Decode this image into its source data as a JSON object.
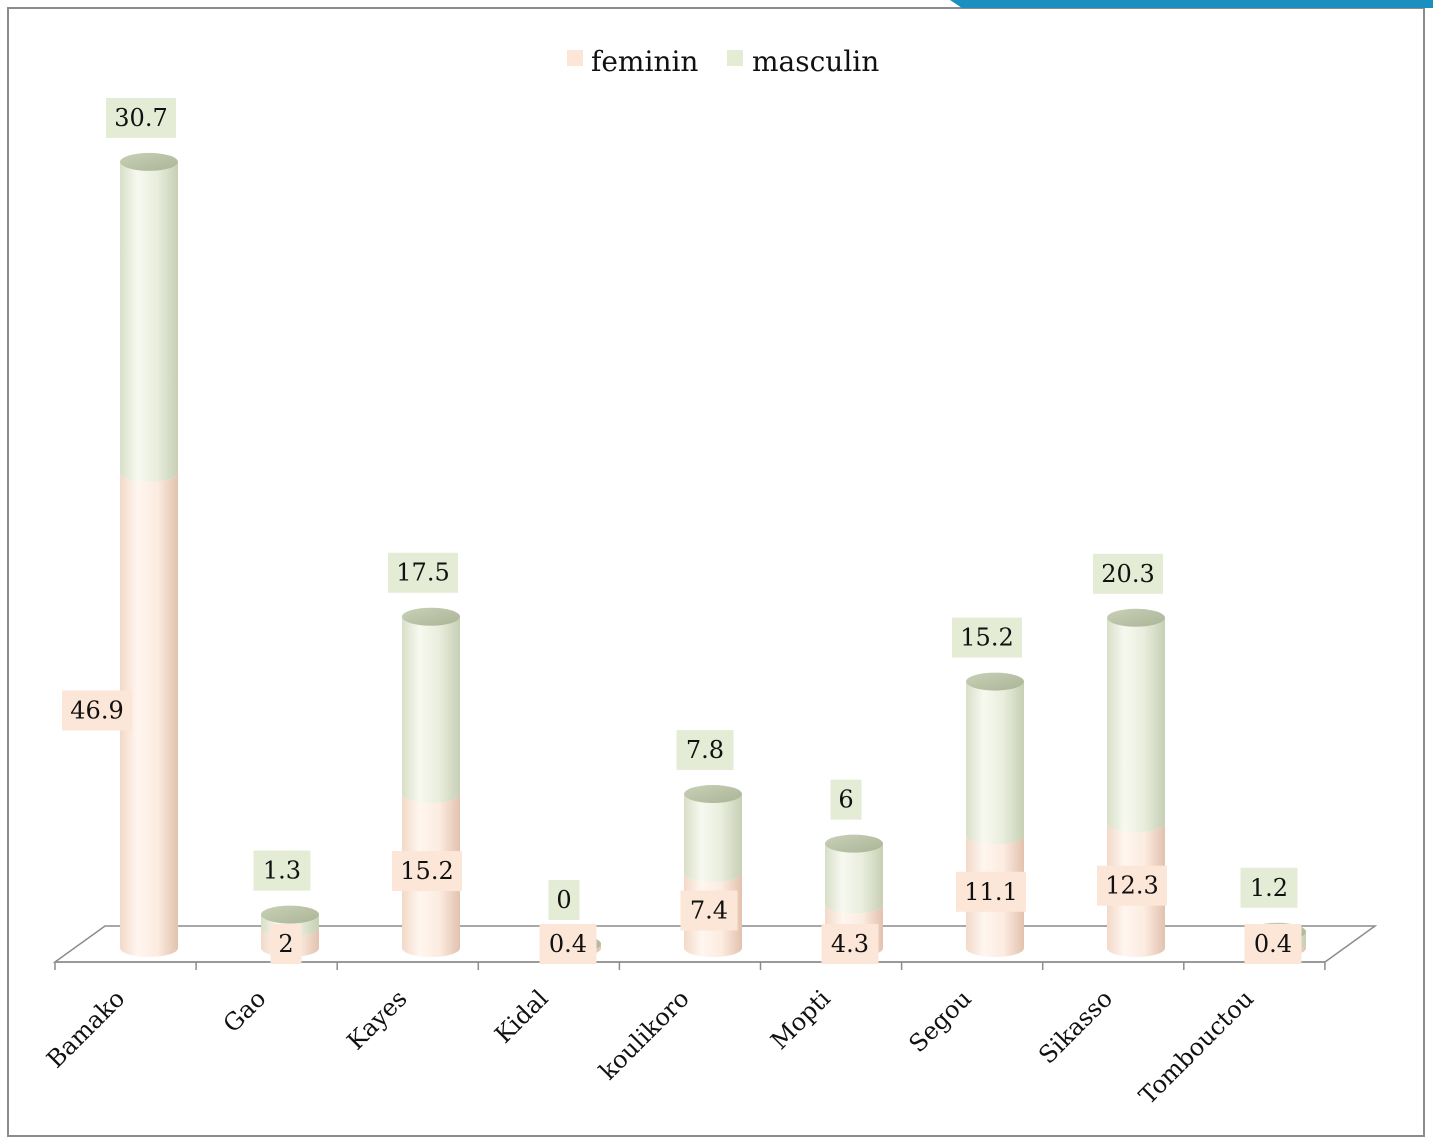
{
  "chart_data": {
    "type": "bar",
    "stacked": true,
    "style": "3d-cylinder",
    "categories": [
      "Bamako",
      "Gao",
      "Kayes",
      "Kidal",
      "koulikoro",
      "Mopti",
      "Segou",
      "Sikasso",
      "Tombouctou"
    ],
    "series": [
      {
        "name": "feminin",
        "values": [
          46.9,
          2,
          15.2,
          0.4,
          7.4,
          4.3,
          11.1,
          12.3,
          0.4
        ],
        "color": "#fcebe0"
      },
      {
        "name": "masculin",
        "values": [
          30.7,
          1.3,
          17.5,
          0,
          7.8,
          6,
          15.2,
          20.3,
          1.2
        ],
        "color": "#e8eddc"
      }
    ],
    "legend_position": "top-center",
    "grid": false,
    "title": "",
    "xlabel": "",
    "ylabel": ""
  },
  "colors": {
    "feminin_fill": "#fcebe0",
    "masculin_fill": "#e8eddc",
    "feminin_label_bg": "#fbe6d8",
    "masculin_label_bg": "#e5ecd5",
    "frame": "#8c8c8c",
    "accent": "#1a8fc0"
  }
}
